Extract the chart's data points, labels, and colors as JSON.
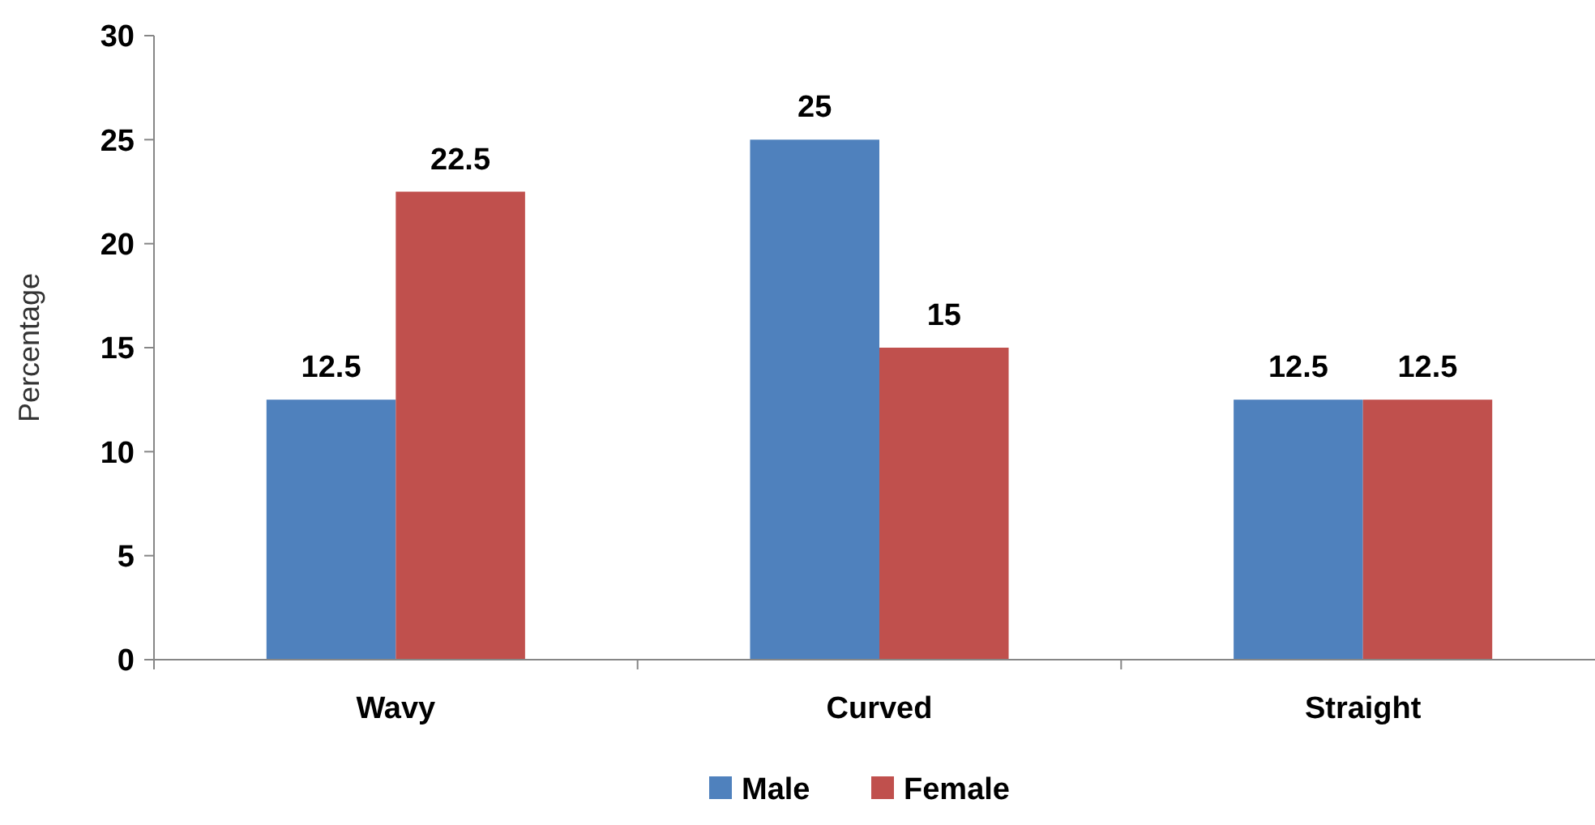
{
  "chart_data": {
    "type": "bar",
    "ylabel": "Percentage",
    "categories": [
      "Wavy",
      "Curved",
      "Straight"
    ],
    "series": [
      {
        "name": "Male",
        "color": "#4f81bd",
        "values": [
          12.5,
          25,
          12.5
        ]
      },
      {
        "name": "Female",
        "color": "#c0504d",
        "values": [
          22.5,
          15,
          12.5
        ]
      }
    ],
    "ylim": [
      0,
      30
    ],
    "yticks": [
      0,
      5,
      10,
      15,
      20,
      25,
      30
    ],
    "data_labels": true,
    "legend": "bottom",
    "grid": false
  }
}
